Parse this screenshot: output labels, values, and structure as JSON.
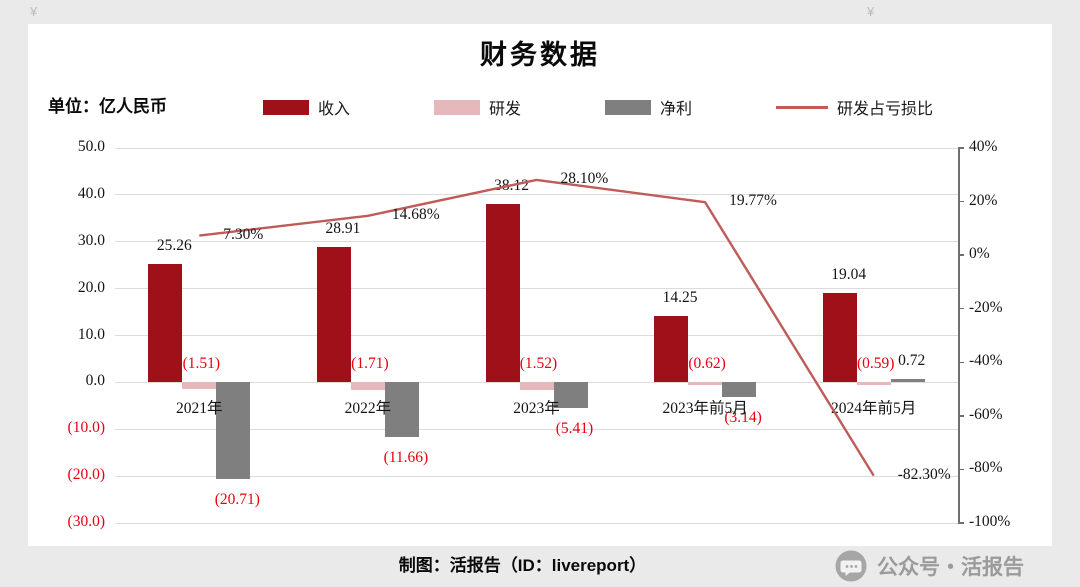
{
  "page": {
    "title": "财务数据",
    "unit_label": "单位：亿人民币",
    "footer": "制图：活报告（ID：livereport）",
    "watermark": "公众号・活报告"
  },
  "decorations": {
    "left": "¥",
    "right": "¥"
  },
  "colors": {
    "revenue": "#a01019",
    "rnd": "#e6b8bb",
    "net_profit": "#7f7f7f",
    "ratio_line": "#bf5b58",
    "negative_text": "#e8000f",
    "background": "#eaeaea",
    "panel": "#ffffff"
  },
  "legend": [
    {
      "key": "revenue",
      "label": "收入",
      "type": "bar",
      "color": "#a01019"
    },
    {
      "key": "rnd",
      "label": "研发",
      "type": "bar",
      "color": "#e6b8bb"
    },
    {
      "key": "net-profit",
      "label": "净利",
      "type": "bar",
      "color": "#7f7f7f"
    },
    {
      "key": "rnd-loss-ratio",
      "label": "研发占亏损比",
      "type": "line",
      "color": "#bf5b58"
    }
  ],
  "chart_data": {
    "type": "bar+line combo",
    "title": "财务数据",
    "unit": "亿人民币",
    "legend_position": "top",
    "grid": true,
    "categories": [
      "2021年",
      "2022年",
      "2023年",
      "2023年前5月",
      "2024年前5月"
    ],
    "left_axis": {
      "min": -30,
      "max": 50,
      "ticks": [
        {
          "v": 50,
          "label": "50.0"
        },
        {
          "v": 40,
          "label": "40.0"
        },
        {
          "v": 30,
          "label": "30.0"
        },
        {
          "v": 20,
          "label": "20.0"
        },
        {
          "v": 10,
          "label": "10.0"
        },
        {
          "v": 0,
          "label": "0.0"
        },
        {
          "v": -10,
          "label": "(10.0)"
        },
        {
          "v": -20,
          "label": "(20.0)"
        },
        {
          "v": -30,
          "label": "(30.0)"
        }
      ]
    },
    "right_axis": {
      "min": -100,
      "max": 40,
      "ticks": [
        {
          "v": 40,
          "label": "40%"
        },
        {
          "v": 20,
          "label": "20%"
        },
        {
          "v": 0,
          "label": "0%"
        },
        {
          "v": -20,
          "label": "-20%"
        },
        {
          "v": -40,
          "label": "-40%"
        },
        {
          "v": -60,
          "label": "-60%"
        },
        {
          "v": -80,
          "label": "-80%"
        },
        {
          "v": -100,
          "label": "-100%"
        }
      ]
    },
    "series": [
      {
        "key": "revenue",
        "name": "收入",
        "axis": "left",
        "color": "#a01019",
        "values": [
          25.26,
          28.91,
          38.12,
          14.25,
          19.04
        ],
        "labels": [
          "25.26",
          "28.91",
          "38.12",
          "14.25",
          "19.04"
        ]
      },
      {
        "key": "rnd",
        "name": "研发",
        "axis": "left",
        "color": "#e6b8bb",
        "values": [
          -1.51,
          -1.71,
          -1.52,
          -0.62,
          -0.59
        ],
        "labels": [
          "(1.51)",
          "(1.71)",
          "(1.52)",
          "(0.62)",
          "(0.59)"
        ]
      },
      {
        "key": "net-profit",
        "name": "净利",
        "axis": "left",
        "color": "#7f7f7f",
        "values": [
          -20.71,
          -11.66,
          -5.41,
          -3.14,
          0.72
        ],
        "labels": [
          "(20.71)",
          "(11.66)",
          "(5.41)",
          "(3.14)",
          "0.72"
        ]
      }
    ],
    "line_series": {
      "key": "rnd-loss-ratio",
      "name": "研发占亏损比",
      "axis": "right",
      "color": "#bf5b58",
      "values": [
        7.3,
        14.68,
        28.1,
        19.77,
        -82.3
      ],
      "labels": [
        "7.30%",
        "14.68%",
        "28.10%",
        "19.77%",
        "-82.30%"
      ]
    }
  }
}
